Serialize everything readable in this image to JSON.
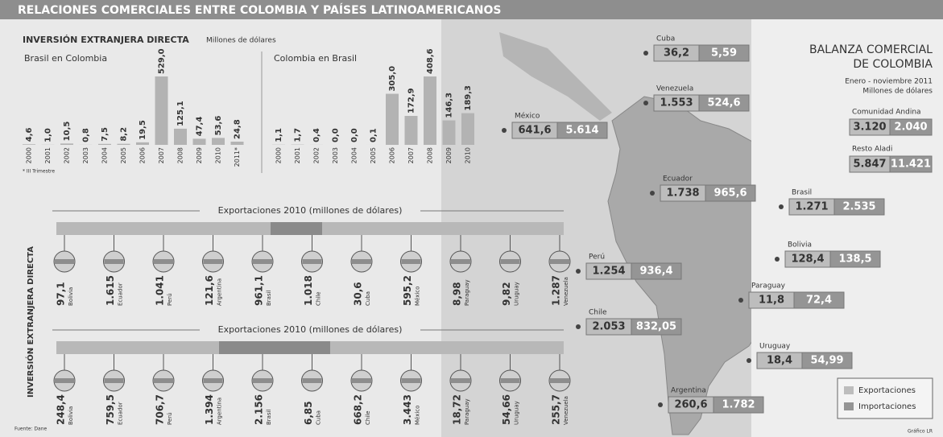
{
  "title": "RELACIONES COMERCIALES ENTRE COLOMBIA Y PAÍSES LATINOAMERICANOS",
  "investment": {
    "title": "INVERSIÓN EXTRANJERA DIRECTA",
    "subtitle": "Millones de dólares",
    "note": "* III Trimestre"
  },
  "chart_data": [
    {
      "type": "bar",
      "title": "Brasil en Colombia",
      "color": "#b3b3b3",
      "categories": [
        "2000",
        "2001",
        "2002",
        "2003",
        "2004",
        "2005",
        "2006",
        "2007",
        "2008",
        "2009",
        "2010",
        "2011*"
      ],
      "values": [
        4.6,
        1.0,
        10.5,
        0.8,
        7.5,
        8.2,
        19.5,
        529.0,
        125.1,
        47.4,
        53.6,
        24.8
      ],
      "value_labels": [
        "4,6",
        "1,0",
        "10,5",
        "0,8",
        "7,5",
        "8,2",
        "19,5",
        "529,0",
        "125,1",
        "47,4",
        "53,6",
        "24,8"
      ]
    },
    {
      "type": "bar",
      "title": "Colombia en Brasil",
      "color": "#b3b3b3",
      "categories": [
        "2000",
        "2001",
        "2002",
        "2003",
        "2004",
        "2005",
        "2006",
        "2007",
        "2008",
        "2009",
        "2010"
      ],
      "values": [
        1.1,
        1.7,
        0.4,
        0.0,
        0.0,
        0.1,
        305.0,
        172.9,
        408.6,
        146.3,
        189.3
      ],
      "value_labels": [
        "1,1",
        "1,7",
        "0,4",
        "0,0",
        "0,0",
        "0,1",
        "305,0",
        "172,9",
        "408,6",
        "146,3",
        "189,3"
      ]
    }
  ],
  "exports": {
    "side_label": "INVERSIÓN EXTRANJERA DIRECTA",
    "rows": [
      {
        "title": "Exportaciones 2010 (millones de dólares)",
        "items": [
          {
            "country": "Bolivia",
            "value": "97,1"
          },
          {
            "country": "Ecuador",
            "value": "1.615"
          },
          {
            "country": "Perú",
            "value": "1.041"
          },
          {
            "country": "Argentina",
            "value": "121,6"
          },
          {
            "country": "Brasil",
            "value": "961,1"
          },
          {
            "country": "Chile",
            "value": "1.018"
          },
          {
            "country": "Cuba",
            "value": "30,6"
          },
          {
            "country": "México",
            "value": "595,2"
          },
          {
            "country": "Paraguay",
            "value": "8,98"
          },
          {
            "country": "Uruguay",
            "value": "9,82"
          },
          {
            "country": "Venezuela",
            "value": "1.287"
          }
        ]
      },
      {
        "title": "Exportaciones 2010 (millones de dólares)",
        "items": [
          {
            "country": "Bolivia",
            "value": "248,4"
          },
          {
            "country": "Ecuador",
            "value": "759,5"
          },
          {
            "country": "Perú",
            "value": "706,7"
          },
          {
            "country": "Argentina",
            "value": "1.394"
          },
          {
            "country": "Brasil",
            "value": "2.156"
          },
          {
            "country": "Cuba",
            "value": "6,85"
          },
          {
            "country": "Chile",
            "value": "668,2"
          },
          {
            "country": "México",
            "value": "3.443"
          },
          {
            "country": "Paraguay",
            "value": "18,72"
          },
          {
            "country": "Uruguay",
            "value": "54,66"
          },
          {
            "country": "Venezuela",
            "value": "255,7"
          }
        ]
      }
    ]
  },
  "map": {
    "countries": [
      {
        "name": "Cuba",
        "exports": "36,2",
        "imports": "5,59"
      },
      {
        "name": "Venezuela",
        "exports": "1.553",
        "imports": "524,6"
      },
      {
        "name": "México",
        "exports": "641,6",
        "imports": "5.614"
      },
      {
        "name": "Ecuador",
        "exports": "1.738",
        "imports": "965,6"
      },
      {
        "name": "Brasil",
        "exports": "1.271",
        "imports": "2.535"
      },
      {
        "name": "Perú",
        "exports": "1.254",
        "imports": "936,4"
      },
      {
        "name": "Bolivia",
        "exports": "128,4",
        "imports": "138,5"
      },
      {
        "name": "Paraguay",
        "exports": "11,8",
        "imports": "72,4"
      },
      {
        "name": "Chile",
        "exports": "2.053",
        "imports": "832,05"
      },
      {
        "name": "Uruguay",
        "exports": "18,4",
        "imports": "54,99"
      },
      {
        "name": "Argentina",
        "exports": "260,6",
        "imports": "1.782"
      }
    ]
  },
  "balance": {
    "title_lines": [
      "BALANZA COMERCIAL",
      "DE COLOMBIA"
    ],
    "period": "Enero - noviembre 2011",
    "unit": "Millones de dólares",
    "groups": [
      {
        "name": "Comunidad Andina",
        "exports": "3.120",
        "imports": "2.040"
      },
      {
        "name": "Resto Aladi",
        "exports": "5.847",
        "imports": "11.421"
      }
    ]
  },
  "legend": [
    "Exportaciones",
    "Importaciones"
  ],
  "source": "Fuente: Dane",
  "credit": "Gráfico LR"
}
